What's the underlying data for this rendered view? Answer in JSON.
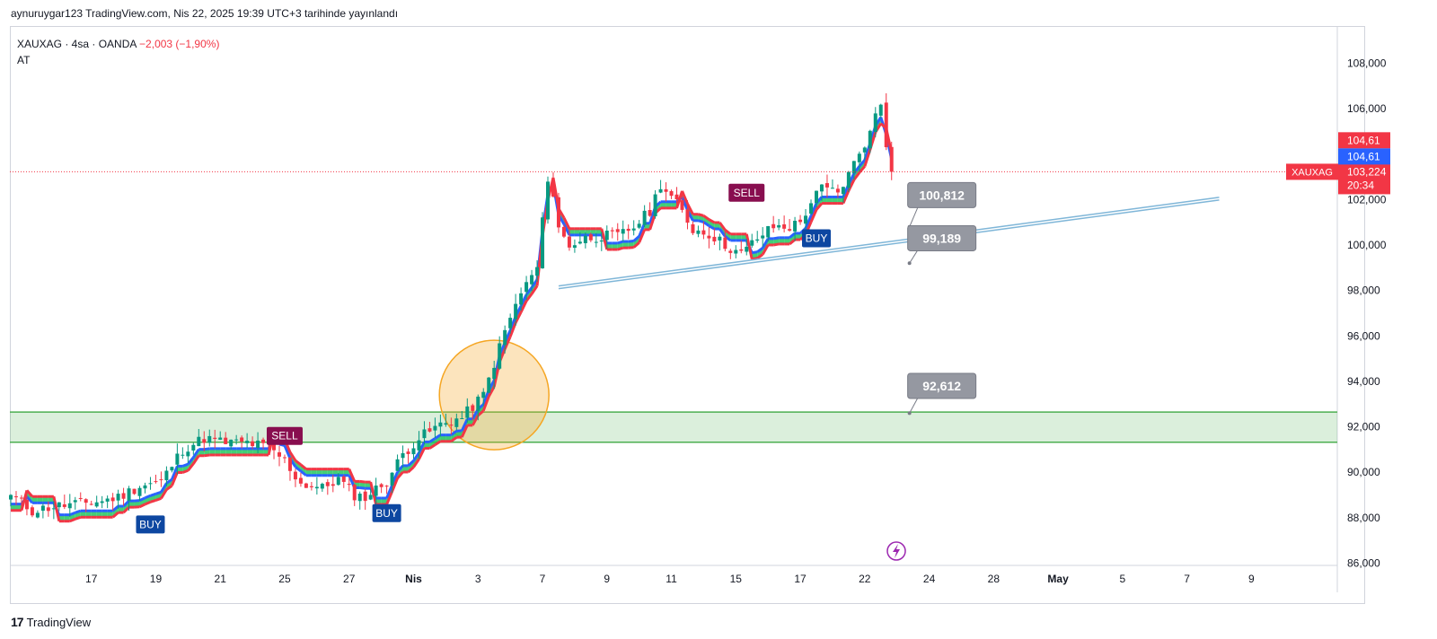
{
  "header": {
    "text": "aynuruygar123 TradingView.com, Nis 22, 2025 19:39 UTC+3 tarihinde yayınlandı"
  },
  "legend": {
    "symbol": "XAUXAG · 4sa · OANDA",
    "change": "−2,003 (−1,90%)",
    "indicator": "AT"
  },
  "footer": {
    "brand": "TradingView"
  },
  "colors": {
    "up": "#089981",
    "down": "#f23645",
    "trail_up": "#2962ff",
    "trail_down": "#f23645",
    "fill": "#22c55e",
    "zone": "#4caf50",
    "circle": "#f5a623",
    "trend": "#7fb6d8"
  },
  "chart_data": {
    "type": "candlestick",
    "ylim": [
      85.9,
      109.6
    ],
    "y_ticks": [
      "108,000",
      "106,000",
      "104,000",
      "102,000",
      "100,000",
      "98,000",
      "96,000",
      "94,000",
      "92,000",
      "90,000",
      "88,000",
      "86,000"
    ],
    "y_tick_values": [
      108,
      106,
      104,
      102,
      100,
      98,
      96,
      94,
      92,
      90,
      88,
      86
    ],
    "x_ticks": [
      {
        "label": "17",
        "bar": 15
      },
      {
        "label": "19",
        "bar": 27
      },
      {
        "label": "21",
        "bar": 39
      },
      {
        "label": "25",
        "bar": 51
      },
      {
        "label": "27",
        "bar": 63
      },
      {
        "label": "Nis",
        "bar": 75
      },
      {
        "label": "3",
        "bar": 87
      },
      {
        "label": "7",
        "bar": 99
      },
      {
        "label": "9",
        "bar": 111
      },
      {
        "label": "11",
        "bar": 123
      },
      {
        "label": "15",
        "bar": 135
      },
      {
        "label": "17",
        "bar": 147
      },
      {
        "label": "22",
        "bar": 159
      },
      {
        "label": "24",
        "bar": 171
      },
      {
        "label": "28",
        "bar": 183
      },
      {
        "label": "May",
        "bar": 195
      },
      {
        "label": "5",
        "bar": 207
      },
      {
        "label": "7",
        "bar": 219
      },
      {
        "label": "9",
        "bar": 231
      }
    ],
    "anchors": [
      [
        0,
        89.0
      ],
      [
        4,
        88.3
      ],
      [
        8,
        88.5
      ],
      [
        12,
        88.6
      ],
      [
        16,
        88.7
      ],
      [
        20,
        88.9
      ],
      [
        24,
        89.4
      ],
      [
        28,
        89.6
      ],
      [
        32,
        91.0
      ],
      [
        36,
        91.5
      ],
      [
        40,
        91.3
      ],
      [
        44,
        91.3
      ],
      [
        48,
        91.1
      ],
      [
        51,
        90.5
      ],
      [
        54,
        89.5
      ],
      [
        58,
        89.3
      ],
      [
        61,
        89.7
      ],
      [
        64,
        89.0
      ],
      [
        66,
        88.9
      ],
      [
        70,
        89.6
      ],
      [
        73,
        90.8
      ],
      [
        76,
        91.5
      ],
      [
        80,
        92.1
      ],
      [
        84,
        92.4
      ],
      [
        88,
        93.4
      ],
      [
        90,
        94.8
      ],
      [
        92,
        96.2
      ],
      [
        95,
        97.9
      ],
      [
        98,
        99.0
      ],
      [
        99,
        101.0
      ],
      [
        100,
        103.0
      ],
      [
        101,
        102.2
      ],
      [
        102,
        100.7
      ],
      [
        104,
        100.0
      ],
      [
        107,
        100.3
      ],
      [
        110,
        100.4
      ],
      [
        113,
        100.4
      ],
      [
        116,
        100.8
      ],
      [
        119,
        101.5
      ],
      [
        121,
        102.7
      ],
      [
        124,
        101.8
      ],
      [
        127,
        100.7
      ],
      [
        130,
        100.5
      ],
      [
        133,
        100.0
      ],
      [
        136,
        99.6
      ],
      [
        139,
        100.3
      ],
      [
        142,
        100.8
      ],
      [
        145,
        100.8
      ],
      [
        147,
        101.0
      ],
      [
        149,
        101.9
      ],
      [
        151,
        102.5
      ],
      [
        154,
        102.3
      ],
      [
        156,
        103.1
      ],
      [
        158,
        104.1
      ],
      [
        160,
        104.9
      ],
      [
        161,
        105.8
      ],
      [
        162,
        106.3
      ],
      [
        163,
        104.5
      ],
      [
        164,
        103.2
      ]
    ],
    "last_price": 103.224,
    "series": [
      {
        "name": "XAUXAG",
        "last_label": "103,224",
        "countdown": "20:34",
        "color": "#f23645"
      }
    ],
    "indicator_levels": [
      {
        "label": "104,61",
        "value": 104.61,
        "color": "#f23645"
      },
      {
        "label": "104,61",
        "value": 104.61,
        "color": "#2962ff",
        "offset": 1
      }
    ],
    "signals": [
      {
        "label": "BUY",
        "bar": 26,
        "price": 87.7,
        "color": "#0d47a1"
      },
      {
        "label": "SELL",
        "bar": 51,
        "price": 91.6,
        "color": "#880e4f"
      },
      {
        "label": "BUY",
        "bar": 70,
        "price": 88.2,
        "color": "#0d47a1"
      },
      {
        "label": "SELL",
        "bar": 137,
        "price": 102.3,
        "color": "#880e4f"
      },
      {
        "label": "BUY",
        "bar": 150,
        "price": 100.3,
        "color": "#0d47a1"
      }
    ],
    "callouts": [
      {
        "label": "100,812",
        "bar": 168,
        "price": 102.2,
        "anchor_price": 100.8
      },
      {
        "label": "99,189",
        "bar": 168,
        "price": 100.3,
        "anchor_price": 99.2
      },
      {
        "label": "92,612",
        "bar": 168,
        "price": 93.8,
        "anchor_price": 92.6
      }
    ],
    "zone": {
      "top": 92.65,
      "bottom": 91.32
    },
    "trendline": {
      "start_bar": 102,
      "start_price": 98.2,
      "end_bar": 225,
      "end_price": 102.1
    },
    "circle": {
      "bar": 90,
      "price": 93.4
    }
  }
}
